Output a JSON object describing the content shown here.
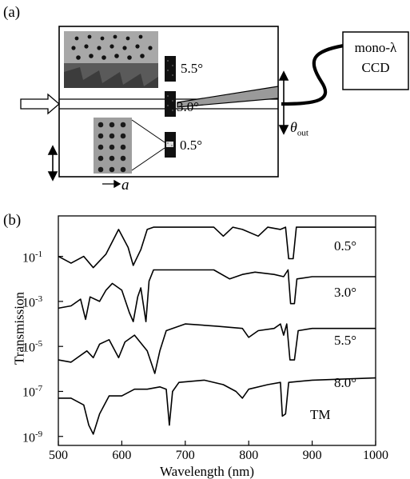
{
  "panel_a": {
    "label": "(a)",
    "angles": [
      "5.5°",
      "3.0°",
      "0.5°"
    ],
    "detector_line1": "mono-λ",
    "detector_line2": "CCD",
    "theta_symbol": "θ",
    "theta_sub": "out",
    "lattice_label": "a"
  },
  "panel_b": {
    "label": "(b)",
    "curve_labels": [
      "0.5°",
      "3.0°",
      "5.5°",
      "8.0°"
    ],
    "polarization_label": "TM"
  },
  "chart_data": {
    "type": "line",
    "xlabel": "Wavelength (nm)",
    "ylabel": "Transmission",
    "x_ticks": [
      "500",
      "600",
      "700",
      "800",
      "900",
      "1000"
    ],
    "y_ticks": [
      {
        "base": "10",
        "exp": "-1"
      },
      {
        "base": "10",
        "exp": "-3"
      },
      {
        "base": "10",
        "exp": "-5"
      },
      {
        "base": "10",
        "exp": "-7"
      },
      {
        "base": "10",
        "exp": "-9"
      }
    ],
    "xlim": [
      500,
      1000
    ],
    "ylim_log10": [
      -9.4,
      0.8
    ],
    "series": [
      {
        "name": "0.5°",
        "points": [
          [
            500,
            -1.0
          ],
          [
            520,
            -1.3
          ],
          [
            540,
            -1.0
          ],
          [
            555,
            -1.5
          ],
          [
            575,
            -0.9
          ],
          [
            595,
            0.2
          ],
          [
            610,
            -0.6
          ],
          [
            618,
            -1.4
          ],
          [
            630,
            -0.7
          ],
          [
            640,
            0.2
          ],
          [
            650,
            0.3
          ],
          [
            700,
            0.3
          ],
          [
            745,
            0.3
          ],
          [
            760,
            -0.1
          ],
          [
            775,
            0.3
          ],
          [
            790,
            0.2
          ],
          [
            815,
            -0.1
          ],
          [
            830,
            0.3
          ],
          [
            850,
            0.2
          ],
          [
            858,
            0.3
          ],
          [
            863,
            -1.1
          ],
          [
            870,
            -1.1
          ],
          [
            875,
            0.3
          ],
          [
            900,
            0.3
          ],
          [
            1000,
            0.3
          ]
        ]
      },
      {
        "name": "3.0°",
        "points": [
          [
            500,
            -3.3
          ],
          [
            520,
            -3.2
          ],
          [
            535,
            -2.9
          ],
          [
            543,
            -3.8
          ],
          [
            550,
            -2.8
          ],
          [
            565,
            -3.0
          ],
          [
            575,
            -2.5
          ],
          [
            585,
            -2.2
          ],
          [
            600,
            -2.5
          ],
          [
            612,
            -3.5
          ],
          [
            618,
            -3.9
          ],
          [
            625,
            -2.8
          ],
          [
            630,
            -2.4
          ],
          [
            638,
            -3.9
          ],
          [
            643,
            -2.1
          ],
          [
            650,
            -1.6
          ],
          [
            700,
            -1.6
          ],
          [
            745,
            -1.6
          ],
          [
            770,
            -2.0
          ],
          [
            790,
            -1.8
          ],
          [
            810,
            -1.7
          ],
          [
            840,
            -1.8
          ],
          [
            855,
            -1.9
          ],
          [
            862,
            -1.6
          ],
          [
            866,
            -3.1
          ],
          [
            872,
            -3.1
          ],
          [
            876,
            -2.0
          ],
          [
            900,
            -1.9
          ],
          [
            1000,
            -1.9
          ]
        ]
      },
      {
        "name": "5.5°",
        "points": [
          [
            500,
            -5.6
          ],
          [
            520,
            -5.7
          ],
          [
            545,
            -5.2
          ],
          [
            555,
            -5.5
          ],
          [
            565,
            -4.9
          ],
          [
            580,
            -4.7
          ],
          [
            595,
            -5.5
          ],
          [
            605,
            -4.8
          ],
          [
            620,
            -4.5
          ],
          [
            640,
            -5.2
          ],
          [
            652,
            -6.2
          ],
          [
            660,
            -5.2
          ],
          [
            670,
            -4.3
          ],
          [
            700,
            -4.0
          ],
          [
            750,
            -4.1
          ],
          [
            790,
            -4.2
          ],
          [
            800,
            -4.6
          ],
          [
            815,
            -4.3
          ],
          [
            840,
            -4.2
          ],
          [
            850,
            -4.0
          ],
          [
            855,
            -4.5
          ],
          [
            860,
            -4.0
          ],
          [
            865,
            -5.6
          ],
          [
            872,
            -5.6
          ],
          [
            878,
            -4.3
          ],
          [
            900,
            -4.2
          ],
          [
            1000,
            -4.2
          ]
        ]
      },
      {
        "name": "8.0°",
        "points": [
          [
            500,
            -7.3
          ],
          [
            520,
            -7.3
          ],
          [
            540,
            -7.6
          ],
          [
            548,
            -8.5
          ],
          [
            555,
            -8.9
          ],
          [
            565,
            -8.0
          ],
          [
            580,
            -7.2
          ],
          [
            600,
            -7.2
          ],
          [
            620,
            -6.9
          ],
          [
            640,
            -6.9
          ],
          [
            660,
            -6.8
          ],
          [
            670,
            -6.9
          ],
          [
            675,
            -8.5
          ],
          [
            680,
            -7.0
          ],
          [
            690,
            -6.6
          ],
          [
            730,
            -6.5
          ],
          [
            760,
            -6.7
          ],
          [
            780,
            -7.0
          ],
          [
            790,
            -7.3
          ],
          [
            800,
            -6.9
          ],
          [
            830,
            -6.7
          ],
          [
            850,
            -6.6
          ],
          [
            853,
            -8.1
          ],
          [
            858,
            -8.0
          ],
          [
            863,
            -6.6
          ],
          [
            900,
            -6.5
          ],
          [
            1000,
            -6.4
          ]
        ]
      }
    ]
  }
}
